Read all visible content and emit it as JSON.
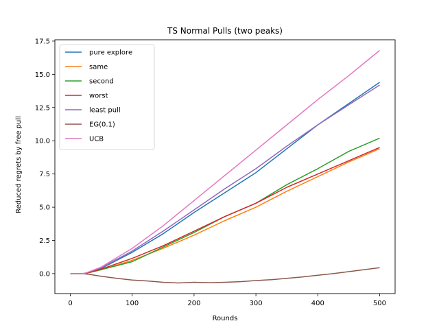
{
  "chart_data": {
    "type": "line",
    "title": "TS Normal Pulls (two peaks)",
    "xlabel": "Rounds",
    "ylabel": "Reduced regrets by free pull",
    "xlim": [
      -25,
      525
    ],
    "ylim": [
      -1.5,
      17.6
    ],
    "xticks": [
      0,
      100,
      200,
      300,
      400,
      500
    ],
    "xtick_labels": [
      "0",
      "100",
      "200",
      "300",
      "400",
      "500"
    ],
    "yticks": [
      0,
      2.5,
      5,
      7.5,
      10,
      12.5,
      15,
      17.5
    ],
    "ytick_labels": [
      "0.0",
      "2.5",
      "5.0",
      "7.5",
      "10.0",
      "12.5",
      "15.0",
      "17.5"
    ],
    "grid": false,
    "legend_position": "upper-left",
    "series": [
      {
        "name": "pure explore",
        "color": "#1f77b4",
        "x": [
          0,
          20,
          25,
          50,
          100,
          150,
          200,
          250,
          300,
          350,
          400,
          450,
          500
        ],
        "y": [
          0,
          0,
          0.05,
          0.4,
          1.6,
          3.0,
          4.6,
          6.1,
          7.6,
          9.4,
          11.2,
          12.8,
          14.4
        ]
      },
      {
        "name": "same",
        "color": "#ff7f0e",
        "x": [
          0,
          20,
          25,
          50,
          100,
          150,
          200,
          250,
          300,
          350,
          400,
          450,
          500
        ],
        "y": [
          0,
          0,
          0.02,
          0.3,
          1.0,
          1.9,
          2.9,
          4.0,
          5.0,
          6.2,
          7.3,
          8.4,
          9.4
        ]
      },
      {
        "name": "second",
        "color": "#2ca02c",
        "x": [
          0,
          20,
          25,
          50,
          100,
          150,
          200,
          250,
          300,
          350,
          400,
          450,
          500
        ],
        "y": [
          0,
          0,
          0.02,
          0.3,
          0.9,
          2.0,
          3.1,
          4.3,
          5.3,
          6.7,
          7.9,
          9.2,
          10.2
        ]
      },
      {
        "name": "worst",
        "color": "#d62728",
        "x": [
          0,
          20,
          25,
          50,
          100,
          150,
          200,
          250,
          300,
          350,
          400,
          450,
          500
        ],
        "y": [
          0,
          0,
          0.02,
          0.35,
          1.15,
          2.1,
          3.2,
          4.3,
          5.3,
          6.5,
          7.5,
          8.5,
          9.5
        ]
      },
      {
        "name": "least pull",
        "color": "#9467bd",
        "x": [
          0,
          20,
          25,
          50,
          100,
          150,
          200,
          250,
          300,
          350,
          400,
          450,
          500
        ],
        "y": [
          0,
          0,
          0.05,
          0.45,
          1.7,
          3.2,
          4.8,
          6.4,
          7.9,
          9.6,
          11.2,
          12.7,
          14.2
        ]
      },
      {
        "name": "EG(0.1)",
        "color": "#8c564b",
        "x": [
          0,
          20,
          30,
          50,
          75,
          100,
          125,
          150,
          175,
          200,
          225,
          250,
          275,
          300,
          325,
          350,
          375,
          400,
          425,
          450,
          475,
          500
        ],
        "y": [
          0,
          0,
          -0.05,
          -0.2,
          -0.35,
          -0.48,
          -0.55,
          -0.65,
          -0.7,
          -0.65,
          -0.68,
          -0.65,
          -0.6,
          -0.52,
          -0.45,
          -0.35,
          -0.25,
          -0.12,
          0.0,
          0.15,
          0.3,
          0.45
        ]
      },
      {
        "name": "UCB",
        "color": "#e377c2",
        "x": [
          0,
          20,
          25,
          50,
          100,
          150,
          200,
          250,
          300,
          350,
          400,
          450,
          500
        ],
        "y": [
          0,
          0,
          0.05,
          0.5,
          1.9,
          3.6,
          5.5,
          7.4,
          9.3,
          11.2,
          13.1,
          14.9,
          16.8
        ]
      }
    ]
  }
}
